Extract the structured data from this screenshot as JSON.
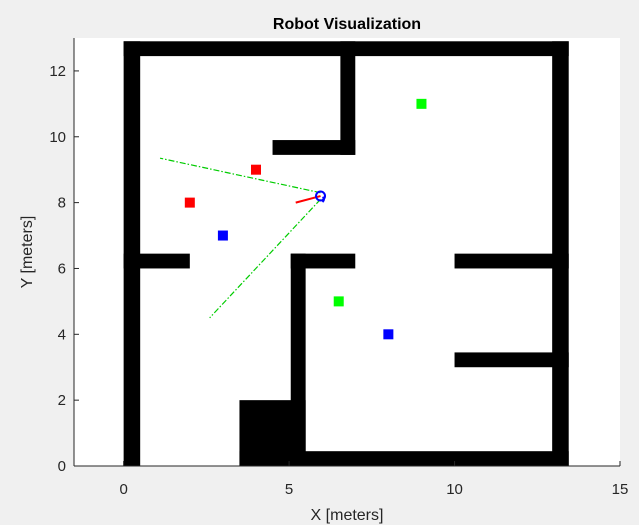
{
  "chart_data": {
    "type": "scatter",
    "title": "Robot Visualization",
    "xlabel": "X [meters]",
    "ylabel": "Y [meters]",
    "xlim": [
      -1.5,
      15
    ],
    "ylim": [
      0,
      13
    ],
    "xticks": [
      0,
      5,
      10,
      15
    ],
    "yticks": [
      0,
      2,
      4,
      6,
      8,
      10,
      12
    ],
    "grid": false,
    "legend": "none",
    "map": {
      "free_region": [
        0,
        13.45,
        0,
        12.9
      ],
      "obstacles": [
        [
          0,
          0.5,
          0,
          12.9
        ],
        [
          0,
          13.45,
          12.45,
          12.9
        ],
        [
          12.95,
          13.45,
          0,
          12.9
        ],
        [
          3.5,
          13.45,
          0,
          0.45
        ],
        [
          3.5,
          5.5,
          0,
          2.0
        ],
        [
          5.05,
          5.5,
          0,
          6.45
        ],
        [
          5.05,
          7.0,
          6.0,
          6.45
        ],
        [
          0,
          2.0,
          6.0,
          6.45
        ],
        [
          10.0,
          13.45,
          6.0,
          6.45
        ],
        [
          10.0,
          13.45,
          3.0,
          3.45
        ],
        [
          4.5,
          7.0,
          9.45,
          9.9
        ],
        [
          6.55,
          7.0,
          9.45,
          12.9
        ]
      ]
    },
    "series": [
      {
        "marker": "square",
        "color": "#ff0000",
        "x": [
          2,
          4
        ],
        "y": [
          8,
          9
        ]
      },
      {
        "marker": "square",
        "color": "#0000ff",
        "x": [
          3,
          8
        ],
        "y": [
          7,
          4
        ]
      },
      {
        "marker": "square",
        "color": "#00ff00",
        "x": [
          9,
          6.5
        ],
        "y": [
          11,
          5
        ]
      }
    ],
    "robot": {
      "x": 5.95,
      "y": 8.2,
      "heading_line": {
        "x": [
          5.95,
          5.2
        ],
        "y": [
          8.2,
          8.0
        ],
        "color": "#ff0000"
      },
      "color": "#0000ff"
    },
    "sensor_rays": [
      {
        "x": [
          5.95,
          1.1
        ],
        "y": [
          8.3,
          9.35
        ]
      },
      {
        "x": [
          5.95,
          2.6
        ],
        "y": [
          8.1,
          4.5
        ]
      }
    ],
    "ray_color": "#00cc00"
  }
}
